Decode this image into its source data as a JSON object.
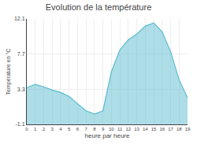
{
  "chart_data": {
    "type": "area",
    "title": "Evolution de la température",
    "xlabel": "heure par heure",
    "ylabel": "Température en °C",
    "x": [
      0,
      1,
      2,
      3,
      4,
      5,
      6,
      7,
      8,
      9,
      10,
      11,
      12,
      13,
      14,
      15,
      16,
      17,
      18,
      19
    ],
    "values": [
      3.5,
      3.9,
      3.6,
      3.2,
      2.9,
      2.4,
      1.5,
      0.6,
      0.2,
      0.6,
      5.5,
      8.2,
      9.5,
      10.2,
      11.2,
      11.6,
      10.5,
      8.0,
      4.5,
      2.2
    ],
    "baseline": -1.1,
    "color": "#5bbcd0",
    "xlim": [
      0,
      19
    ],
    "xticks": [
      0,
      1,
      2,
      3,
      4,
      5,
      6,
      7,
      8,
      9,
      10,
      11,
      12,
      13,
      14,
      15,
      16,
      17,
      18,
      19
    ],
    "ylim": [
      -1.1,
      12.1
    ],
    "yticks": [
      -1.1,
      3.3,
      7.7,
      12.1
    ],
    "grid": true
  }
}
